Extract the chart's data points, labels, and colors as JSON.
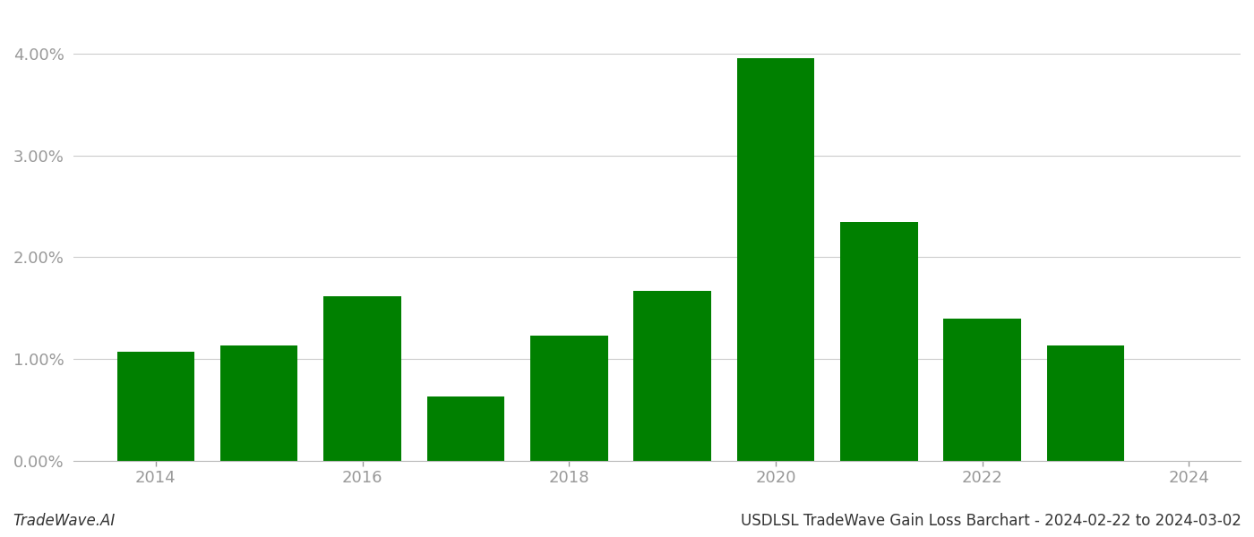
{
  "years": [
    2014,
    2015,
    2016,
    2017,
    2018,
    2019,
    2020,
    2021,
    2022,
    2023
  ],
  "values": [
    0.0107,
    0.0113,
    0.0162,
    0.0063,
    0.0123,
    0.0167,
    0.0396,
    0.0235,
    0.014,
    0.0113
  ],
  "bar_color": "#008000",
  "background_color": "#ffffff",
  "ylim": [
    0,
    0.044
  ],
  "yticks": [
    0.0,
    0.01,
    0.02,
    0.03,
    0.04
  ],
  "ytick_labels": [
    "0.00%",
    "1.00%",
    "2.00%",
    "3.00%",
    "4.00%"
  ],
  "xticks": [
    2014,
    2016,
    2018,
    2020,
    2022,
    2024
  ],
  "xtick_labels": [
    "2014",
    "2016",
    "2018",
    "2020",
    "2022",
    "2024"
  ],
  "xlim": [
    2013.2,
    2024.5
  ],
  "footer_left": "TradeWave.AI",
  "footer_right": "USDLSL TradeWave Gain Loss Barchart - 2024-02-22 to 2024-03-02",
  "grid_color": "#cccccc",
  "tick_color": "#999999",
  "bar_width": 0.75,
  "tick_fontsize": 13,
  "footer_fontsize": 12
}
